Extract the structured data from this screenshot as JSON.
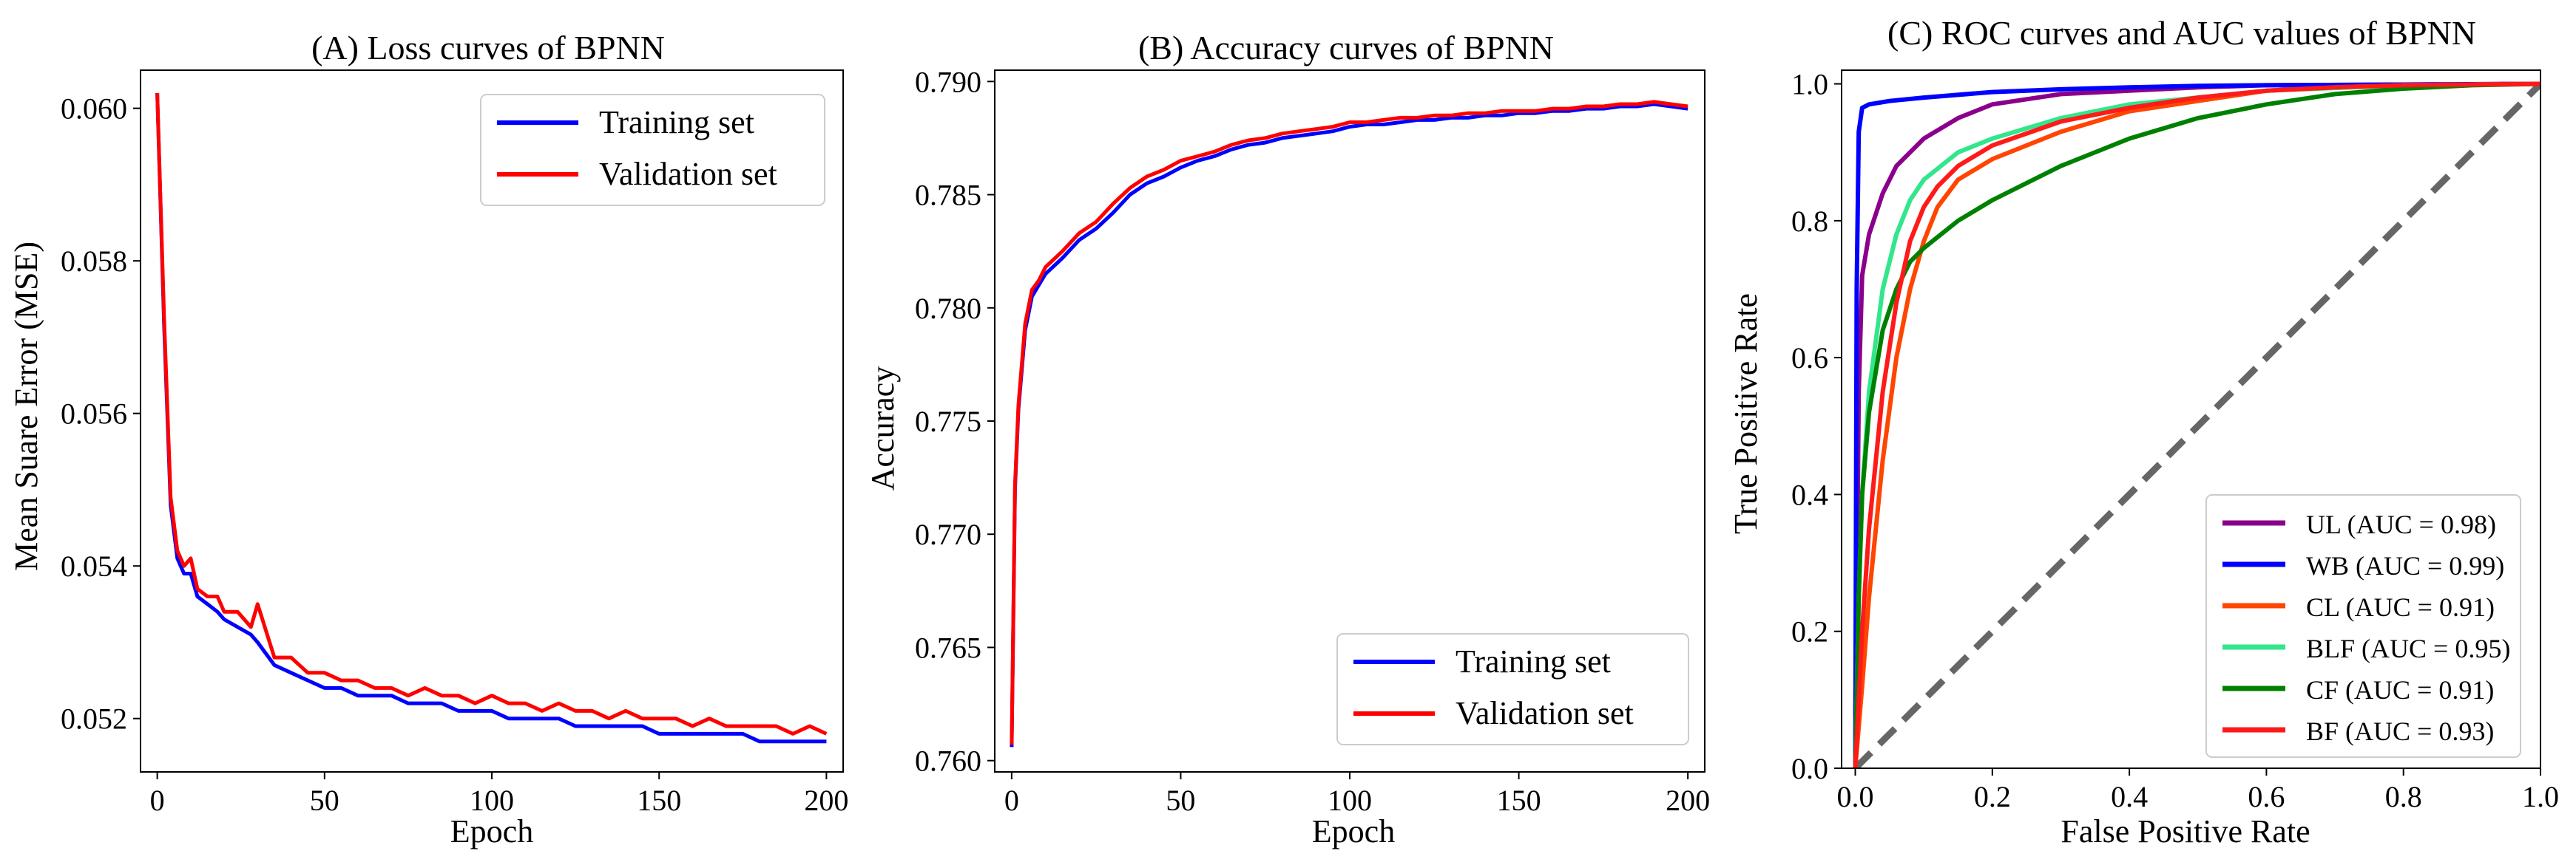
{
  "chart_data": [
    {
      "type": "line",
      "title": "(A) Loss curves of BPNN",
      "xlabel": "Epoch",
      "ylabel": "Mean Suare Error (MSE)",
      "xlim": [
        -5,
        205
      ],
      "ylim": [
        0.0513,
        0.0605
      ],
      "xticks": [
        0,
        50,
        100,
        150,
        200
      ],
      "xtick_labels": [
        "0",
        "50",
        "100",
        "150",
        "200"
      ],
      "yticks": [
        0.052,
        0.054,
        0.056,
        0.058,
        0.06
      ],
      "ytick_labels": [
        "0.052",
        "0.054",
        "0.056",
        "0.058",
        "0.060"
      ],
      "legend_position": "top-right",
      "series": [
        {
          "name": "Training set",
          "color": "#0000ff",
          "x": [
            0,
            2,
            4,
            6,
            8,
            10,
            12,
            15,
            18,
            20,
            24,
            28,
            30,
            35,
            40,
            45,
            50,
            55,
            60,
            65,
            70,
            75,
            80,
            85,
            90,
            95,
            100,
            105,
            110,
            115,
            120,
            125,
            130,
            135,
            140,
            145,
            150,
            155,
            160,
            165,
            170,
            175,
            180,
            185,
            190,
            195,
            200
          ],
          "values": [
            0.0602,
            0.0572,
            0.0548,
            0.0541,
            0.0539,
            0.0539,
            0.0536,
            0.0535,
            0.0534,
            0.0533,
            0.0532,
            0.0531,
            0.053,
            0.0527,
            0.0526,
            0.0525,
            0.0524,
            0.0524,
            0.0523,
            0.0523,
            0.0523,
            0.0522,
            0.0522,
            0.0522,
            0.0521,
            0.0521,
            0.0521,
            0.052,
            0.052,
            0.052,
            0.052,
            0.0519,
            0.0519,
            0.0519,
            0.0519,
            0.0519,
            0.0518,
            0.0518,
            0.0518,
            0.0518,
            0.0518,
            0.0518,
            0.0517,
            0.0517,
            0.0517,
            0.0517,
            0.0517
          ]
        },
        {
          "name": "Validation set",
          "color": "#ff0000",
          "x": [
            0,
            2,
            4,
            6,
            8,
            10,
            12,
            15,
            18,
            20,
            24,
            28,
            30,
            35,
            40,
            45,
            50,
            55,
            60,
            65,
            70,
            75,
            80,
            85,
            90,
            95,
            100,
            105,
            110,
            115,
            120,
            125,
            130,
            135,
            140,
            145,
            150,
            155,
            160,
            165,
            170,
            175,
            180,
            185,
            190,
            195,
            200
          ],
          "values": [
            0.0602,
            0.0573,
            0.0549,
            0.0542,
            0.054,
            0.0541,
            0.0537,
            0.0536,
            0.0536,
            0.0534,
            0.0534,
            0.0532,
            0.0535,
            0.0528,
            0.0528,
            0.0526,
            0.0526,
            0.0525,
            0.0525,
            0.0524,
            0.0524,
            0.0523,
            0.0524,
            0.0523,
            0.0523,
            0.0522,
            0.0523,
            0.0522,
            0.0522,
            0.0521,
            0.0522,
            0.0521,
            0.0521,
            0.052,
            0.0521,
            0.052,
            0.052,
            0.052,
            0.0519,
            0.052,
            0.0519,
            0.0519,
            0.0519,
            0.0519,
            0.0518,
            0.0519,
            0.0518
          ]
        }
      ]
    },
    {
      "type": "line",
      "title": "(B) Accuracy curves of BPNN",
      "xlabel": "Epoch",
      "ylabel": "Accuracy",
      "xlim": [
        -5,
        205
      ],
      "ylim": [
        0.7595,
        0.7905
      ],
      "xticks": [
        0,
        50,
        100,
        150,
        200
      ],
      "xtick_labels": [
        "0",
        "50",
        "100",
        "150",
        "200"
      ],
      "yticks": [
        0.76,
        0.765,
        0.77,
        0.775,
        0.78,
        0.785,
        0.79
      ],
      "ytick_labels": [
        "0.760",
        "0.765",
        "0.770",
        "0.775",
        "0.780",
        "0.785",
        "0.790"
      ],
      "legend_position": "bottom-right",
      "series": [
        {
          "name": "Training set",
          "color": "#0000ff",
          "x": [
            0,
            1,
            2,
            4,
            6,
            8,
            10,
            15,
            20,
            25,
            30,
            35,
            40,
            45,
            50,
            55,
            60,
            65,
            70,
            75,
            80,
            85,
            90,
            95,
            100,
            105,
            110,
            115,
            120,
            125,
            130,
            135,
            140,
            145,
            150,
            155,
            160,
            165,
            170,
            175,
            180,
            185,
            190,
            195,
            200
          ],
          "values": [
            0.7606,
            0.772,
            0.7755,
            0.779,
            0.7805,
            0.781,
            0.7815,
            0.7822,
            0.783,
            0.7835,
            0.7842,
            0.785,
            0.7855,
            0.7858,
            0.7862,
            0.7865,
            0.7867,
            0.787,
            0.7872,
            0.7873,
            0.7875,
            0.7876,
            0.7877,
            0.7878,
            0.788,
            0.7881,
            0.7881,
            0.7882,
            0.7883,
            0.7883,
            0.7884,
            0.7884,
            0.7885,
            0.7885,
            0.7886,
            0.7886,
            0.7887,
            0.7887,
            0.7888,
            0.7888,
            0.7889,
            0.7889,
            0.789,
            0.7889,
            0.7888
          ]
        },
        {
          "name": "Validation set",
          "color": "#ff0000",
          "x": [
            0,
            1,
            2,
            4,
            6,
            8,
            10,
            15,
            20,
            25,
            30,
            35,
            40,
            45,
            50,
            55,
            60,
            65,
            70,
            75,
            80,
            85,
            90,
            95,
            100,
            105,
            110,
            115,
            120,
            125,
            130,
            135,
            140,
            145,
            150,
            155,
            160,
            165,
            170,
            175,
            180,
            185,
            190,
            195,
            200
          ],
          "values": [
            0.7607,
            0.7722,
            0.7757,
            0.7793,
            0.7808,
            0.7812,
            0.7818,
            0.7825,
            0.7833,
            0.7838,
            0.7846,
            0.7853,
            0.7858,
            0.7861,
            0.7865,
            0.7867,
            0.7869,
            0.7872,
            0.7874,
            0.7875,
            0.7877,
            0.7878,
            0.7879,
            0.788,
            0.7882,
            0.7882,
            0.7883,
            0.7884,
            0.7884,
            0.7885,
            0.7885,
            0.7886,
            0.7886,
            0.7887,
            0.7887,
            0.7887,
            0.7888,
            0.7888,
            0.7889,
            0.7889,
            0.789,
            0.789,
            0.7891,
            0.789,
            0.7889
          ]
        }
      ]
    },
    {
      "type": "line",
      "title": "(C) ROC curves and AUC values of BPNN",
      "xlabel": "False Positive Rate",
      "ylabel": "True Positive Rate",
      "xlim": [
        -0.02,
        1.0
      ],
      "ylim": [
        0.0,
        1.02
      ],
      "xticks": [
        0.0,
        0.2,
        0.4,
        0.6,
        0.8,
        1.0
      ],
      "xtick_labels": [
        "0.0",
        "0.2",
        "0.4",
        "0.6",
        "0.8",
        "1.0"
      ],
      "yticks": [
        0.0,
        0.2,
        0.4,
        0.6,
        0.8,
        1.0
      ],
      "ytick_labels": [
        "0.0",
        "0.2",
        "0.4",
        "0.6",
        "0.8",
        "1.0"
      ],
      "legend_position": "bottom-right",
      "diagonal": {
        "color": "#666666",
        "style": "dashed"
      },
      "series": [
        {
          "name": "UL (AUC = 0.98)",
          "color": "#8b008b",
          "x": [
            0,
            0.005,
            0.01,
            0.02,
            0.04,
            0.06,
            0.08,
            0.1,
            0.15,
            0.2,
            0.3,
            0.4,
            0.5,
            0.6,
            0.8,
            1.0
          ],
          "values": [
            0,
            0.55,
            0.72,
            0.78,
            0.84,
            0.88,
            0.9,
            0.92,
            0.95,
            0.97,
            0.985,
            0.99,
            0.995,
            0.998,
            0.999,
            1.0
          ]
        },
        {
          "name": "WB (AUC = 0.99)",
          "color": "#0000ff",
          "x": [
            0,
            0.002,
            0.005,
            0.01,
            0.02,
            0.05,
            0.1,
            0.2,
            0.3,
            0.4,
            0.5,
            0.6,
            0.8,
            1.0
          ],
          "values": [
            0,
            0.7,
            0.93,
            0.965,
            0.97,
            0.975,
            0.98,
            0.988,
            0.992,
            0.995,
            0.997,
            0.998,
            0.999,
            1.0
          ]
        },
        {
          "name": "CL (AUC = 0.91)",
          "color": "#ff4500",
          "x": [
            0,
            0.01,
            0.02,
            0.04,
            0.06,
            0.08,
            0.1,
            0.12,
            0.15,
            0.2,
            0.3,
            0.4,
            0.5,
            0.6,
            0.7,
            0.8,
            1.0
          ],
          "values": [
            0,
            0.12,
            0.25,
            0.45,
            0.6,
            0.7,
            0.77,
            0.82,
            0.86,
            0.89,
            0.93,
            0.96,
            0.975,
            0.99,
            0.995,
            0.998,
            1.0
          ]
        },
        {
          "name": "BLF (AUC = 0.95)",
          "color": "#32e68c",
          "x": [
            0,
            0.005,
            0.01,
            0.02,
            0.04,
            0.06,
            0.08,
            0.1,
            0.15,
            0.2,
            0.3,
            0.4,
            0.5,
            0.6,
            0.8,
            1.0
          ],
          "values": [
            0,
            0.25,
            0.4,
            0.55,
            0.7,
            0.78,
            0.83,
            0.86,
            0.9,
            0.92,
            0.95,
            0.97,
            0.98,
            0.99,
            0.998,
            1.0
          ]
        },
        {
          "name": "CF (AUC = 0.91)",
          "color": "#008000",
          "x": [
            0,
            0.005,
            0.01,
            0.02,
            0.04,
            0.06,
            0.08,
            0.1,
            0.15,
            0.2,
            0.3,
            0.4,
            0.5,
            0.6,
            0.7,
            0.8,
            0.9,
            1.0
          ],
          "values": [
            0,
            0.25,
            0.4,
            0.52,
            0.64,
            0.7,
            0.74,
            0.76,
            0.8,
            0.83,
            0.88,
            0.92,
            0.95,
            0.97,
            0.985,
            0.993,
            0.998,
            1.0
          ]
        },
        {
          "name": "BF (AUC = 0.93)",
          "color": "#ff1a1a",
          "x": [
            0,
            0.005,
            0.01,
            0.02,
            0.04,
            0.06,
            0.08,
            0.1,
            0.12,
            0.15,
            0.2,
            0.3,
            0.4,
            0.5,
            0.6,
            0.7,
            0.8,
            1.0
          ],
          "values": [
            0,
            0.1,
            0.2,
            0.35,
            0.55,
            0.68,
            0.77,
            0.82,
            0.85,
            0.88,
            0.91,
            0.945,
            0.965,
            0.98,
            0.99,
            0.995,
            0.998,
            1.0
          ]
        }
      ]
    }
  ]
}
